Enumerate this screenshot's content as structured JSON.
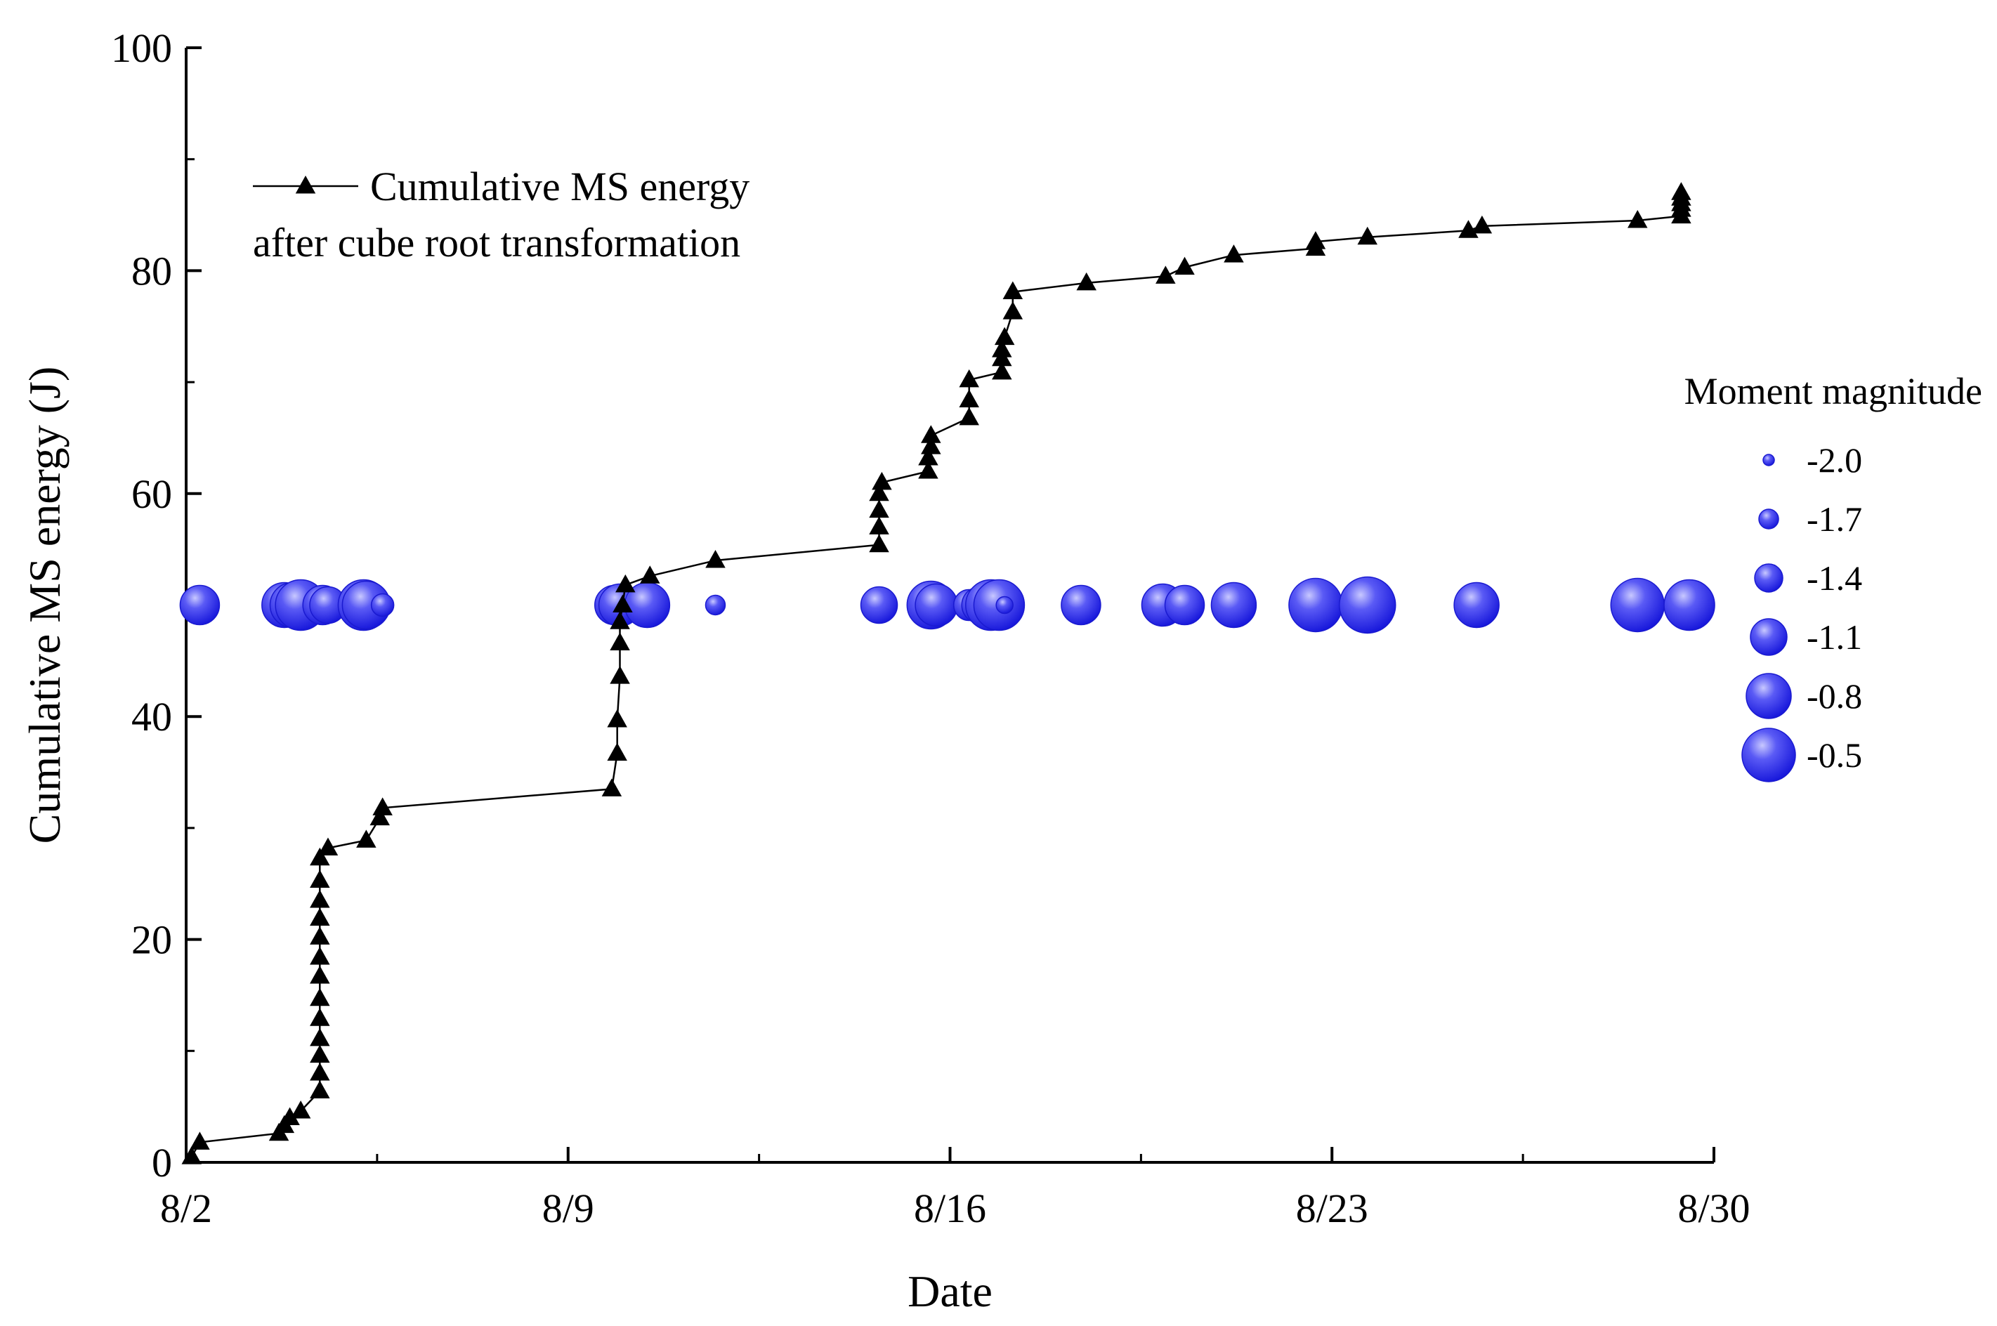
{
  "chart_data": {
    "type": "line",
    "title": "",
    "xlabel": "Date",
    "ylabel": "Cumulative MS energy (J)",
    "xlim": [
      0,
      28
    ],
    "ylim": [
      0,
      100
    ],
    "x_ticks": [
      {
        "value": 0,
        "label": "8/2"
      },
      {
        "value": 7,
        "label": "8/9"
      },
      {
        "value": 14,
        "label": "8/16"
      },
      {
        "value": 21,
        "label": "8/23"
      },
      {
        "value": 28,
        "label": "8/30"
      }
    ],
    "y_ticks": [
      {
        "value": 0,
        "label": "0"
      },
      {
        "value": 20,
        "label": "20"
      },
      {
        "value": 40,
        "label": "40"
      },
      {
        "value": 60,
        "label": "60"
      },
      {
        "value": 80,
        "label": "80"
      },
      {
        "value": 100,
        "label": "100"
      }
    ],
    "series": [
      {
        "name": "Cumulative MS energy after cube root transformation",
        "legend_lines": [
          "Cumulative MS energy",
          "after cube root transformation"
        ],
        "marker": "triangle",
        "color": "#000000",
        "points": [
          [
            0.1,
            0.5
          ],
          [
            0.25,
            1.8
          ],
          [
            1.7,
            2.6
          ],
          [
            1.8,
            3.3
          ],
          [
            1.9,
            4.0
          ],
          [
            2.1,
            4.6
          ],
          [
            2.45,
            6.4
          ],
          [
            2.45,
            8.0
          ],
          [
            2.45,
            9.6
          ],
          [
            2.45,
            11.1
          ],
          [
            2.45,
            12.9
          ],
          [
            2.45,
            14.7
          ],
          [
            2.45,
            16.7
          ],
          [
            2.45,
            18.4
          ],
          [
            2.45,
            20.2
          ],
          [
            2.45,
            21.9
          ],
          [
            2.45,
            23.5
          ],
          [
            2.45,
            25.3
          ],
          [
            2.45,
            27.3
          ],
          [
            2.6,
            28.2
          ],
          [
            3.3,
            28.9
          ],
          [
            3.55,
            30.9
          ],
          [
            3.6,
            31.8
          ],
          [
            7.8,
            33.5
          ],
          [
            7.9,
            36.7
          ],
          [
            7.9,
            39.7
          ],
          [
            7.95,
            43.6
          ],
          [
            7.95,
            46.6
          ],
          [
            7.95,
            48.5
          ],
          [
            8.0,
            50.0
          ],
          [
            8.05,
            51.8
          ],
          [
            8.5,
            52.6
          ],
          [
            9.7,
            54.0
          ],
          [
            12.7,
            55.4
          ],
          [
            12.7,
            57.0
          ],
          [
            12.7,
            58.5
          ],
          [
            12.7,
            60.0
          ],
          [
            12.75,
            61.0
          ],
          [
            13.6,
            62.0
          ],
          [
            13.6,
            63.2
          ],
          [
            13.65,
            64.2
          ],
          [
            13.65,
            65.2
          ],
          [
            14.35,
            66.8
          ],
          [
            14.35,
            68.4
          ],
          [
            14.35,
            70.2
          ],
          [
            14.95,
            70.9
          ],
          [
            14.95,
            72.1
          ],
          [
            14.95,
            72.9
          ],
          [
            15.0,
            74.0
          ],
          [
            15.15,
            76.3
          ],
          [
            15.15,
            78.1
          ],
          [
            16.5,
            78.9
          ],
          [
            17.95,
            79.5
          ],
          [
            18.3,
            80.3
          ],
          [
            19.2,
            81.4
          ],
          [
            20.7,
            82.0
          ],
          [
            20.7,
            82.6
          ],
          [
            21.65,
            83.0
          ],
          [
            23.5,
            83.6
          ],
          [
            23.75,
            84.0
          ],
          [
            26.6,
            84.5
          ],
          [
            27.4,
            84.9
          ],
          [
            27.4,
            85.5
          ],
          [
            27.4,
            86.0
          ],
          [
            27.4,
            86.5
          ],
          [
            27.4,
            87.0
          ]
        ]
      }
    ],
    "bubbles": {
      "name": "Moment magnitude",
      "y_level": 50,
      "color": "#1f1fe6",
      "legend": [
        {
          "value": -2.0,
          "label": "-2.0"
        },
        {
          "value": -1.7,
          "label": "-1.7"
        },
        {
          "value": -1.4,
          "label": "-1.4"
        },
        {
          "value": -1.1,
          "label": "-1.1"
        },
        {
          "value": -0.8,
          "label": "-0.8"
        },
        {
          "value": -0.5,
          "label": "-0.5"
        }
      ],
      "events": [
        {
          "x": 0.25,
          "m": -1.0
        },
        {
          "x": 1.8,
          "m": -0.8
        },
        {
          "x": 1.95,
          "m": -0.8
        },
        {
          "x": 2.1,
          "m": -0.6
        },
        {
          "x": 2.5,
          "m": -1.0
        },
        {
          "x": 2.6,
          "m": -1.1
        },
        {
          "x": 3.25,
          "m": -0.6
        },
        {
          "x": 3.3,
          "m": -0.7
        },
        {
          "x": 3.6,
          "m": -1.6
        },
        {
          "x": 7.85,
          "m": -1.0
        },
        {
          "x": 7.95,
          "m": -0.9
        },
        {
          "x": 8.45,
          "m": -0.8
        },
        {
          "x": 9.7,
          "m": -1.7
        },
        {
          "x": 12.7,
          "m": -1.1
        },
        {
          "x": 13.65,
          "m": -0.7
        },
        {
          "x": 13.75,
          "m": -0.9
        },
        {
          "x": 14.35,
          "m": -1.3
        },
        {
          "x": 14.55,
          "m": -1.1
        },
        {
          "x": 14.75,
          "m": -0.6
        },
        {
          "x": 14.9,
          "m": -0.6
        },
        {
          "x": 15.0,
          "m": -1.8
        },
        {
          "x": 16.4,
          "m": -1.0
        },
        {
          "x": 17.9,
          "m": -0.9
        },
        {
          "x": 18.3,
          "m": -1.0
        },
        {
          "x": 19.2,
          "m": -0.8
        },
        {
          "x": 20.7,
          "m": -0.5
        },
        {
          "x": 21.65,
          "m": -0.4
        },
        {
          "x": 23.45,
          "m": -1.7
        },
        {
          "x": 23.65,
          "m": -0.8
        },
        {
          "x": 26.6,
          "m": -0.5
        },
        {
          "x": 27.55,
          "m": -0.6
        }
      ]
    }
  }
}
